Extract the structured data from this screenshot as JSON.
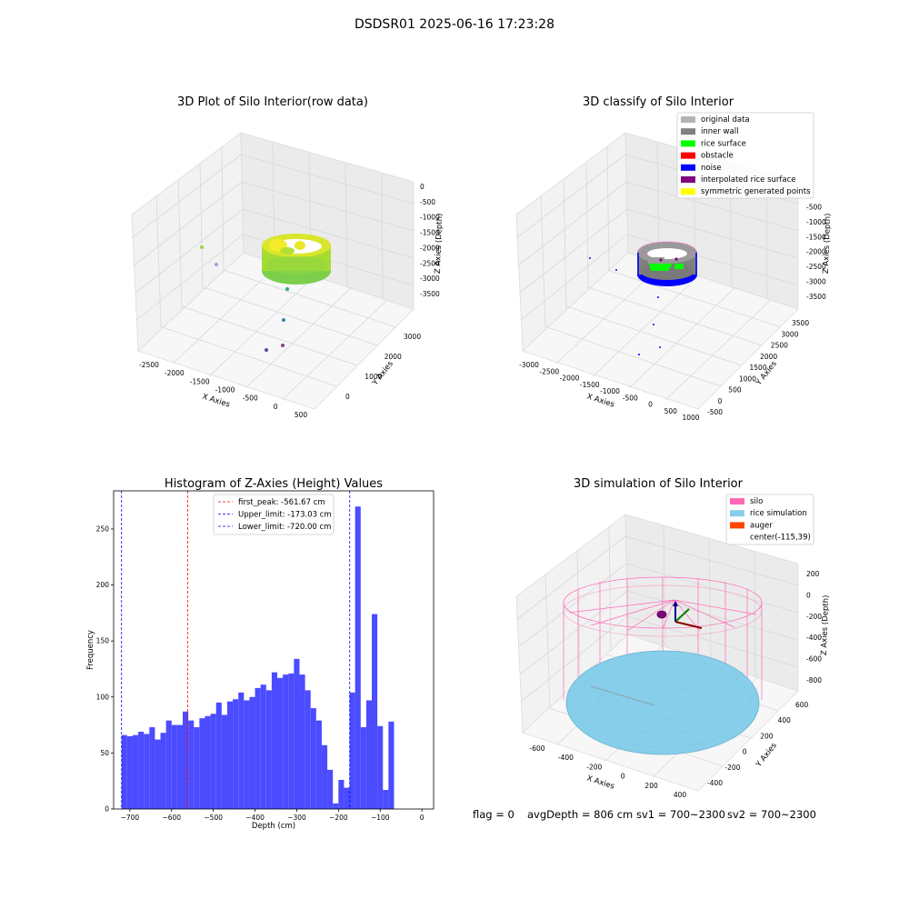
{
  "suptitle": "DSDSR01 2025-06-16 17:23:28",
  "footer": {
    "flag": "flag = 0",
    "avg_depth": "avgDepth = 806 cm",
    "sv1": "sv1 = 700~2300",
    "sv2": "sv2 = 700~2300"
  },
  "chart_data": [
    {
      "type": "scatter",
      "title": "3D Plot of Silo Interior(row data)",
      "xlabel": "X Axies",
      "ylabel": "Y Axies",
      "zlabel": "Z Axies (Depth)",
      "x_ticks": [
        "-2500",
        "-2000",
        "-1500",
        "-1000",
        "-500",
        "0",
        "500"
      ],
      "y_ticks": [
        "0",
        "1000",
        "2000",
        "3000"
      ],
      "z_ticks": [
        "0",
        "-500",
        "-1000",
        "-1500",
        "-2000",
        "-2500",
        "-3000",
        "-3500"
      ],
      "colormap": [
        "#8fd644",
        "#c8e020",
        "#fde725"
      ],
      "outlier_colors": [
        "#9ad944",
        "#a9a0dd",
        "#35a98a",
        "#2c8a9c",
        "#5a4a9e",
        "#8a3f86"
      ]
    },
    {
      "type": "scatter",
      "title": "3D classify of Silo Interior",
      "xlabel": "X Axies",
      "ylabel": "Y Axies",
      "zlabel": "Z Axies (Depth)",
      "x_ticks": [
        "-3000",
        "-2500",
        "-2000",
        "-1500",
        "-1000",
        "-500",
        "0",
        "500",
        "1000"
      ],
      "y_ticks": [
        "-500",
        "0",
        "500",
        "1000",
        "1500",
        "2000",
        "2500",
        "3000",
        "3500"
      ],
      "z_ticks": [
        "0",
        "-500",
        "-1000",
        "-1500",
        "-2000",
        "-2500",
        "-3000",
        "-3500"
      ],
      "legend": [
        {
          "label": "original data",
          "color": "#b3b3b3"
        },
        {
          "label": "inner wall",
          "color": "#808080"
        },
        {
          "label": "rice surface",
          "color": "#00ff00"
        },
        {
          "label": "obstacle",
          "color": "#ff0000"
        },
        {
          "label": "noise",
          "color": "#0000ff"
        },
        {
          "label": "interpolated rice surface",
          "color": "#800080"
        },
        {
          "label": "symmetric generated points",
          "color": "#ffff00"
        }
      ],
      "legend_position": "top-right"
    },
    {
      "type": "bar",
      "title": "Histogram of Z-Axies (Height) Values",
      "xlabel": "Depth (cm)",
      "ylabel": "Frequency",
      "bar_color": "#4b4bff",
      "xlim": [
        -739,
        28
      ],
      "ylim": [
        0,
        284
      ],
      "x_ticks": [
        -700,
        -600,
        -500,
        -400,
        -300,
        -200,
        -100,
        0
      ],
      "y_ticks": [
        0,
        50,
        100,
        150,
        200,
        250
      ],
      "bin_start": -720,
      "bin_width": 13.33,
      "values": [
        66,
        65,
        66,
        69,
        67,
        73,
        62,
        68,
        79,
        75,
        75,
        87,
        79,
        73,
        81,
        83,
        85,
        95,
        84,
        96,
        98,
        104,
        97,
        100,
        108,
        111,
        106,
        122,
        117,
        120,
        121,
        134,
        120,
        106,
        90,
        79,
        57,
        35,
        5,
        26,
        19,
        104,
        270,
        73,
        97,
        174,
        74,
        17,
        78
      ],
      "lines": [
        {
          "label": "first_peak: -561.67 cm",
          "x": -561.67,
          "color": "#ff0000"
        },
        {
          "label": "Upper_limit: -173.03 cm",
          "x": -173.03,
          "color": "#0000ff"
        },
        {
          "label": "Lower_limit: -720.00 cm",
          "x": -720.0,
          "color": "#0000ff"
        }
      ],
      "legend_position": "top-center"
    },
    {
      "type": "scatter",
      "title": "3D simulation of Silo Interior",
      "xlabel": "X Axies",
      "ylabel": "Y Axies",
      "zlabel": "Z Axies (Depth)",
      "x_ticks": [
        "-600",
        "-400",
        "-200",
        "0",
        "200",
        "400"
      ],
      "y_ticks": [
        "-400",
        "-200",
        "0",
        "200",
        "400",
        "600"
      ],
      "z_ticks": [
        "200",
        "0",
        "-200",
        "-400",
        "-600",
        "-800"
      ],
      "legend": [
        {
          "label": "silo",
          "color": "#ff69b4"
        },
        {
          "label": "rice simulation",
          "color": "#87ceeb"
        },
        {
          "label": "auger",
          "color": "#ff4500"
        },
        {
          "label": "center(-115,39)",
          "color": ""
        }
      ],
      "legend_position": "top-right"
    }
  ]
}
